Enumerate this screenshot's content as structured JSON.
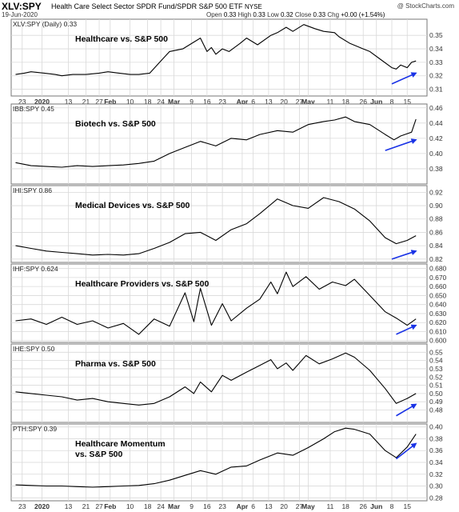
{
  "header": {
    "symbol": "XLV:SPY",
    "name": "Health Care Select Sector SPDR Fund/SPDR S&P 500 ETF",
    "exchange": "NYSE",
    "date": "19-Jun-2020",
    "open_label": "Open",
    "open": "0.33",
    "high_label": "High",
    "high": "0.33",
    "low_label": "Low",
    "low": "0.32",
    "close_label": "Close",
    "close": "0.33",
    "chg_label": "Chg",
    "chg": "+0.00 (+1.54%)",
    "brand": "@ StockCharts.com"
  },
  "chart_data": [
    {
      "type": "line",
      "legend": "XLV:SPY (Daily) 0.33",
      "title": "Healthcare vs. S&P 500",
      "ylim": [
        0.305,
        0.362
      ],
      "yticks": [
        "0.31",
        "0.32",
        "0.33",
        "0.34",
        "0.35"
      ],
      "grid": true,
      "x": [
        "2019-12-20",
        "2019-12-24",
        "2019-12-27",
        "2020-01-02",
        "2020-01-07",
        "2020-01-10",
        "2020-01-15",
        "2020-01-21",
        "2020-01-27",
        "2020-01-31",
        "2020-02-05",
        "2020-02-10",
        "2020-02-14",
        "2020-02-19",
        "2020-02-24",
        "2020-02-28",
        "2020-03-05",
        "2020-03-10",
        "2020-03-13",
        "2020-03-16",
        "2020-03-18",
        "2020-03-20",
        "2020-03-23",
        "2020-03-26",
        "2020-03-31",
        "2020-04-03",
        "2020-04-08",
        "2020-04-14",
        "2020-04-17",
        "2020-04-21",
        "2020-04-24",
        "2020-04-29",
        "2020-05-04",
        "2020-05-08",
        "2020-05-13",
        "2020-05-15",
        "2020-05-20",
        "2020-05-26",
        "2020-05-29",
        "2020-06-03",
        "2020-06-08",
        "2020-06-10",
        "2020-06-12",
        "2020-06-15",
        "2020-06-17",
        "2020-06-19"
      ],
      "y": [
        0.321,
        0.322,
        0.323,
        0.322,
        0.321,
        0.32,
        0.321,
        0.321,
        0.322,
        0.323,
        0.322,
        0.321,
        0.321,
        0.322,
        0.331,
        0.338,
        0.34,
        0.345,
        0.348,
        0.338,
        0.341,
        0.336,
        0.34,
        0.338,
        0.344,
        0.348,
        0.343,
        0.35,
        0.352,
        0.356,
        0.353,
        0.358,
        0.355,
        0.353,
        0.352,
        0.349,
        0.344,
        0.34,
        0.338,
        0.332,
        0.326,
        0.325,
        0.328,
        0.326,
        0.33,
        0.331
      ],
      "trend_arrow": {
        "from": [
          "2020-06-08",
          0.314
        ],
        "to": [
          "2020-06-19",
          0.322
        ],
        "color": "#1a33e6"
      }
    },
    {
      "type": "line",
      "legend": "IBB:SPY 0.45",
      "title": "Biotech vs. S&P 500",
      "ylim": [
        0.36,
        0.465
      ],
      "yticks": [
        "0.38",
        "0.40",
        "0.42",
        "0.44",
        "0.46"
      ],
      "grid": true,
      "x": [
        "2019-12-20",
        "2019-12-27",
        "2020-01-03",
        "2020-01-10",
        "2020-01-17",
        "2020-01-24",
        "2020-01-31",
        "2020-02-07",
        "2020-02-14",
        "2020-02-21",
        "2020-02-28",
        "2020-03-06",
        "2020-03-13",
        "2020-03-20",
        "2020-03-27",
        "2020-04-03",
        "2020-04-09",
        "2020-04-17",
        "2020-04-24",
        "2020-05-01",
        "2020-05-08",
        "2020-05-13",
        "2020-05-18",
        "2020-05-22",
        "2020-05-29",
        "2020-06-05",
        "2020-06-09",
        "2020-06-12",
        "2020-06-17",
        "2020-06-19"
      ],
      "y": [
        0.388,
        0.384,
        0.383,
        0.382,
        0.384,
        0.383,
        0.384,
        0.385,
        0.387,
        0.39,
        0.4,
        0.408,
        0.416,
        0.41,
        0.42,
        0.418,
        0.425,
        0.43,
        0.428,
        0.438,
        0.442,
        0.444,
        0.448,
        0.442,
        0.438,
        0.425,
        0.418,
        0.423,
        0.428,
        0.445
      ],
      "trend_arrow": {
        "from": [
          "2020-06-05",
          0.404
        ],
        "to": [
          "2020-06-19",
          0.418
        ],
        "color": "#1a33e6"
      }
    },
    {
      "type": "line",
      "legend": "IHI:SPY 0.86",
      "title": "Medical Devices vs. S&P 500",
      "ylim": [
        0.815,
        0.93
      ],
      "yticks": [
        "0.82",
        "0.84",
        "0.86",
        "0.88",
        "0.90",
        "0.92"
      ],
      "grid": true,
      "x": [
        "2019-12-20",
        "2019-12-27",
        "2020-01-03",
        "2020-01-10",
        "2020-01-17",
        "2020-01-24",
        "2020-01-31",
        "2020-02-07",
        "2020-02-14",
        "2020-02-21",
        "2020-02-28",
        "2020-03-06",
        "2020-03-13",
        "2020-03-20",
        "2020-03-27",
        "2020-04-03",
        "2020-04-09",
        "2020-04-17",
        "2020-04-24",
        "2020-05-01",
        "2020-05-08",
        "2020-05-15",
        "2020-05-22",
        "2020-05-29",
        "2020-06-05",
        "2020-06-10",
        "2020-06-15",
        "2020-06-19"
      ],
      "y": [
        0.84,
        0.836,
        0.832,
        0.83,
        0.828,
        0.826,
        0.827,
        0.826,
        0.828,
        0.836,
        0.845,
        0.858,
        0.86,
        0.848,
        0.864,
        0.873,
        0.888,
        0.91,
        0.9,
        0.896,
        0.912,
        0.906,
        0.895,
        0.877,
        0.852,
        0.843,
        0.848,
        0.855
      ],
      "trend_arrow": {
        "from": [
          "2020-06-08",
          0.82
        ],
        "to": [
          "2020-06-19",
          0.832
        ],
        "color": "#1a33e6"
      }
    },
    {
      "type": "line",
      "legend": "IHF:SPY 0.624",
      "title": "Healthcare Providers vs. S&P 500",
      "ylim": [
        0.598,
        0.685
      ],
      "yticks": [
        "0.600",
        "0.610",
        "0.620",
        "0.630",
        "0.640",
        "0.650",
        "0.660",
        "0.670",
        "0.680"
      ],
      "grid": true,
      "x": [
        "2019-12-20",
        "2019-12-27",
        "2020-01-03",
        "2020-01-10",
        "2020-01-17",
        "2020-01-24",
        "2020-01-31",
        "2020-02-07",
        "2020-02-14",
        "2020-02-21",
        "2020-02-28",
        "2020-03-06",
        "2020-03-10",
        "2020-03-13",
        "2020-03-18",
        "2020-03-23",
        "2020-03-27",
        "2020-04-03",
        "2020-04-09",
        "2020-04-14",
        "2020-04-17",
        "2020-04-21",
        "2020-04-24",
        "2020-04-30",
        "2020-05-06",
        "2020-05-12",
        "2020-05-18",
        "2020-05-22",
        "2020-05-29",
        "2020-06-05",
        "2020-06-10",
        "2020-06-15",
        "2020-06-19"
      ],
      "y": [
        0.622,
        0.624,
        0.618,
        0.626,
        0.618,
        0.622,
        0.614,
        0.619,
        0.607,
        0.624,
        0.616,
        0.653,
        0.621,
        0.658,
        0.617,
        0.641,
        0.622,
        0.636,
        0.646,
        0.665,
        0.652,
        0.676,
        0.66,
        0.671,
        0.657,
        0.665,
        0.661,
        0.668,
        0.65,
        0.632,
        0.625,
        0.617,
        0.624
      ],
      "trend_arrow": {
        "from": [
          "2020-06-10",
          0.607
        ],
        "to": [
          "2020-06-19",
          0.617
        ],
        "color": "#1a33e6"
      }
    },
    {
      "type": "line",
      "legend": "IHE:SPY 0.50",
      "title": "Pharma vs. S&P 500",
      "ylim": [
        0.465,
        0.56
      ],
      "yticks": [
        "0.48",
        "0.49",
        "0.50",
        "0.51",
        "0.52",
        "0.53",
        "0.54",
        "0.55"
      ],
      "grid": true,
      "x": [
        "2019-12-20",
        "2019-12-27",
        "2020-01-03",
        "2020-01-10",
        "2020-01-17",
        "2020-01-24",
        "2020-01-31",
        "2020-02-07",
        "2020-02-14",
        "2020-02-21",
        "2020-02-28",
        "2020-03-06",
        "2020-03-10",
        "2020-03-13",
        "2020-03-18",
        "2020-03-23",
        "2020-03-27",
        "2020-04-03",
        "2020-04-09",
        "2020-04-14",
        "2020-04-17",
        "2020-04-21",
        "2020-04-24",
        "2020-04-30",
        "2020-05-06",
        "2020-05-12",
        "2020-05-18",
        "2020-05-22",
        "2020-05-29",
        "2020-06-05",
        "2020-06-10",
        "2020-06-15",
        "2020-06-19"
      ],
      "y": [
        0.502,
        0.5,
        0.498,
        0.496,
        0.492,
        0.494,
        0.49,
        0.488,
        0.486,
        0.488,
        0.496,
        0.508,
        0.5,
        0.514,
        0.502,
        0.522,
        0.516,
        0.526,
        0.534,
        0.541,
        0.53,
        0.537,
        0.528,
        0.546,
        0.536,
        0.542,
        0.549,
        0.544,
        0.528,
        0.506,
        0.488,
        0.494,
        0.5
      ],
      "trend_arrow": {
        "from": [
          "2020-06-10",
          0.473
        ],
        "to": [
          "2020-06-19",
          0.487
        ],
        "color": "#1a33e6"
      }
    },
    {
      "type": "line",
      "legend": "PTH:SPY 0.39",
      "title": "Healthcare Momentum vs. S&P 500",
      "ylim": [
        0.275,
        0.405
      ],
      "yticks": [
        "0.28",
        "0.30",
        "0.32",
        "0.34",
        "0.36",
        "0.38",
        "0.40"
      ],
      "grid": true,
      "x": [
        "2019-12-20",
        "2019-12-27",
        "2020-01-03",
        "2020-01-10",
        "2020-01-17",
        "2020-01-24",
        "2020-01-31",
        "2020-02-07",
        "2020-02-14",
        "2020-02-21",
        "2020-02-28",
        "2020-03-06",
        "2020-03-13",
        "2020-03-20",
        "2020-03-27",
        "2020-04-03",
        "2020-04-09",
        "2020-04-17",
        "2020-04-24",
        "2020-05-01",
        "2020-05-08",
        "2020-05-13",
        "2020-05-18",
        "2020-05-22",
        "2020-05-29",
        "2020-06-05",
        "2020-06-10",
        "2020-06-15",
        "2020-06-19"
      ],
      "y": [
        0.302,
        0.301,
        0.3,
        0.3,
        0.299,
        0.298,
        0.299,
        0.3,
        0.301,
        0.304,
        0.31,
        0.318,
        0.326,
        0.32,
        0.332,
        0.334,
        0.344,
        0.356,
        0.352,
        0.365,
        0.38,
        0.392,
        0.398,
        0.396,
        0.388,
        0.36,
        0.348,
        0.366,
        0.388
      ],
      "trend_arrow": {
        "from": [
          "2020-06-10",
          0.346
        ],
        "to": [
          "2020-06-19",
          0.372
        ],
        "color": "#1a33e6"
      }
    }
  ],
  "x_axis": {
    "ticks": [
      {
        "date": "2019-12-23",
        "label": "23"
      },
      {
        "date": "2020-01-01",
        "label": "2020"
      },
      {
        "date": "2020-01-13",
        "label": "13"
      },
      {
        "date": "2020-01-21",
        "label": "21"
      },
      {
        "date": "2020-01-27",
        "label": "27"
      },
      {
        "date": "2020-02-01",
        "label": "Feb"
      },
      {
        "date": "2020-02-10",
        "label": "10"
      },
      {
        "date": "2020-02-18",
        "label": "18"
      },
      {
        "date": "2020-02-24",
        "label": "24"
      },
      {
        "date": "2020-03-01",
        "label": "Mar"
      },
      {
        "date": "2020-03-09",
        "label": "9"
      },
      {
        "date": "2020-03-16",
        "label": "16"
      },
      {
        "date": "2020-03-23",
        "label": "23"
      },
      {
        "date": "2020-04-01",
        "label": "Apr"
      },
      {
        "date": "2020-04-06",
        "label": "6"
      },
      {
        "date": "2020-04-13",
        "label": "13"
      },
      {
        "date": "2020-04-20",
        "label": "20"
      },
      {
        "date": "2020-04-27",
        "label": "27"
      },
      {
        "date": "2020-05-01",
        "label": "May"
      },
      {
        "date": "2020-05-11",
        "label": "11"
      },
      {
        "date": "2020-05-18",
        "label": "18"
      },
      {
        "date": "2020-05-26",
        "label": "26"
      },
      {
        "date": "2020-06-01",
        "label": "Jun"
      },
      {
        "date": "2020-06-08",
        "label": "8"
      },
      {
        "date": "2020-06-15",
        "label": "15"
      }
    ],
    "bold_labels": [
      "2020",
      "Feb",
      "Mar",
      "Apr",
      "May",
      "Jun"
    ],
    "range": [
      "2019-12-18",
      "2020-06-24"
    ]
  },
  "colors": {
    "line": "#000000",
    "grid": "#d9d9d9",
    "arrow": "#1a33e6",
    "frame": "#777777"
  }
}
